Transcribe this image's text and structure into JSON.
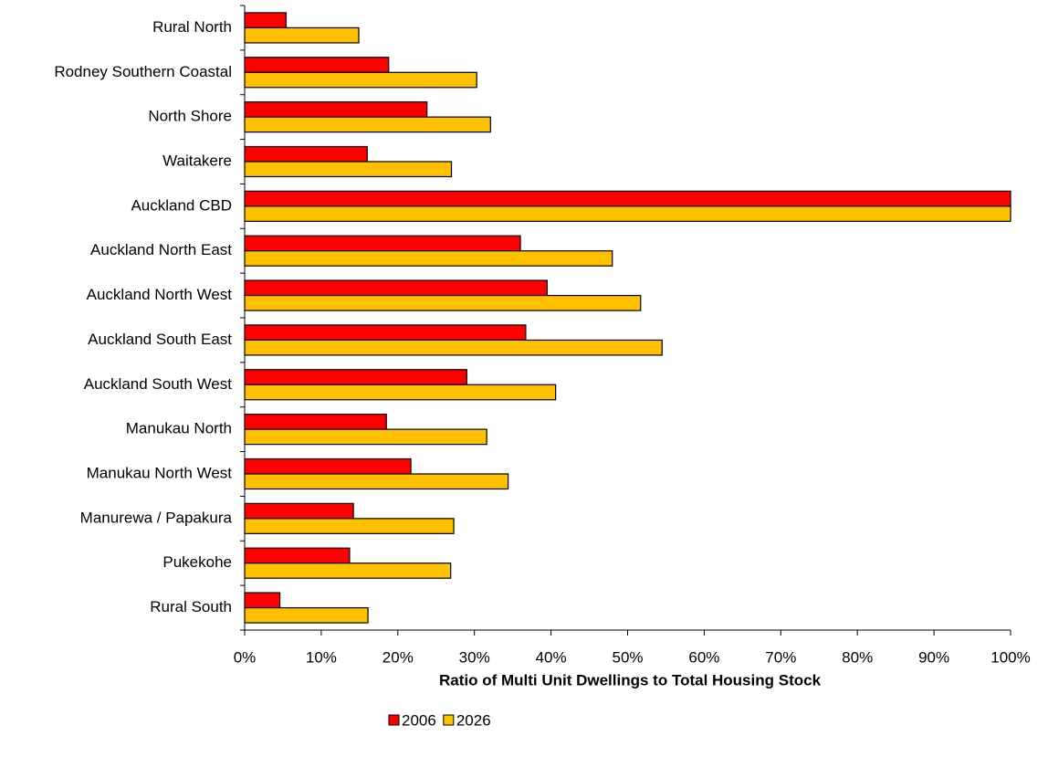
{
  "chart_data": {
    "type": "bar",
    "orientation": "horizontal",
    "x_label": "Ratio of Multi Unit Dwellings to Total Housing Stock",
    "categories": [
      "Rural North",
      "Rodney Southern Coastal",
      "North Shore",
      "Waitakere",
      "Auckland CBD",
      "Auckland North East",
      "Auckland North West",
      "Auckland South East",
      "Auckland South West",
      "Manukau North",
      "Manukau North West",
      "Manurewa / Papakura",
      "Pukekohe",
      "Rural South"
    ],
    "series": [
      {
        "name": "2006",
        "color": "#ff0000",
        "values": [
          5.4,
          18.8,
          23.8,
          16,
          100,
          36,
          39.5,
          36.7,
          29,
          18.5,
          21.7,
          14.2,
          13.7,
          4.6
        ]
      },
      {
        "name": "2026",
        "color": "#ffc000",
        "values": [
          14.9,
          30.3,
          32.1,
          27,
          100,
          48,
          51.7,
          54.5,
          40.6,
          31.6,
          34.4,
          27.3,
          26.9,
          16.1
        ]
      }
    ],
    "xlim": [
      0,
      100
    ],
    "xticks": [
      {
        "value": 0,
        "label": "0%"
      },
      {
        "value": 10,
        "label": "10%"
      },
      {
        "value": 20,
        "label": "20%"
      },
      {
        "value": 30,
        "label": "30%"
      },
      {
        "value": 40,
        "label": "40%"
      },
      {
        "value": 50,
        "label": "50%"
      },
      {
        "value": 60,
        "label": "60%"
      },
      {
        "value": 70,
        "label": "70%"
      },
      {
        "value": 80,
        "label": "80%"
      },
      {
        "value": 90,
        "label": "90%"
      },
      {
        "value": 100,
        "label": "100%"
      }
    ],
    "legend": "bottom"
  }
}
